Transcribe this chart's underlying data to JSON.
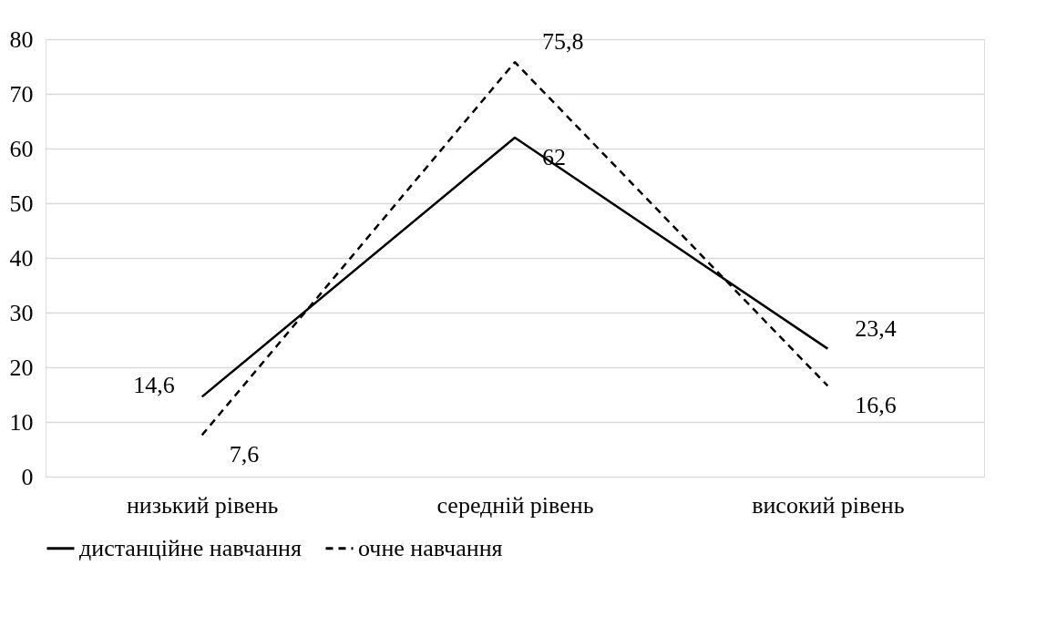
{
  "chart_data": {
    "type": "line",
    "categories": [
      "низький рівень",
      "середній рівень",
      "високий рівень"
    ],
    "series": [
      {
        "name": "дистанційне навчання",
        "color": "#000000",
        "line_style": "solid",
        "values": [
          14.6,
          62,
          23.4
        ],
        "value_labels": [
          "14,6",
          "62",
          "23,4"
        ]
      },
      {
        "name": "очне навчання",
        "color": "#000000",
        "line_style": "dashed",
        "values": [
          7.6,
          75.8,
          16.6
        ],
        "value_labels": [
          "7,6",
          "75,8",
          "16,6"
        ]
      }
    ],
    "ylim": [
      0,
      80
    ],
    "yticks": [
      0,
      10,
      20,
      30,
      40,
      50,
      60,
      70,
      80
    ],
    "grid": "y",
    "legend": "bottom",
    "marker": "none"
  }
}
